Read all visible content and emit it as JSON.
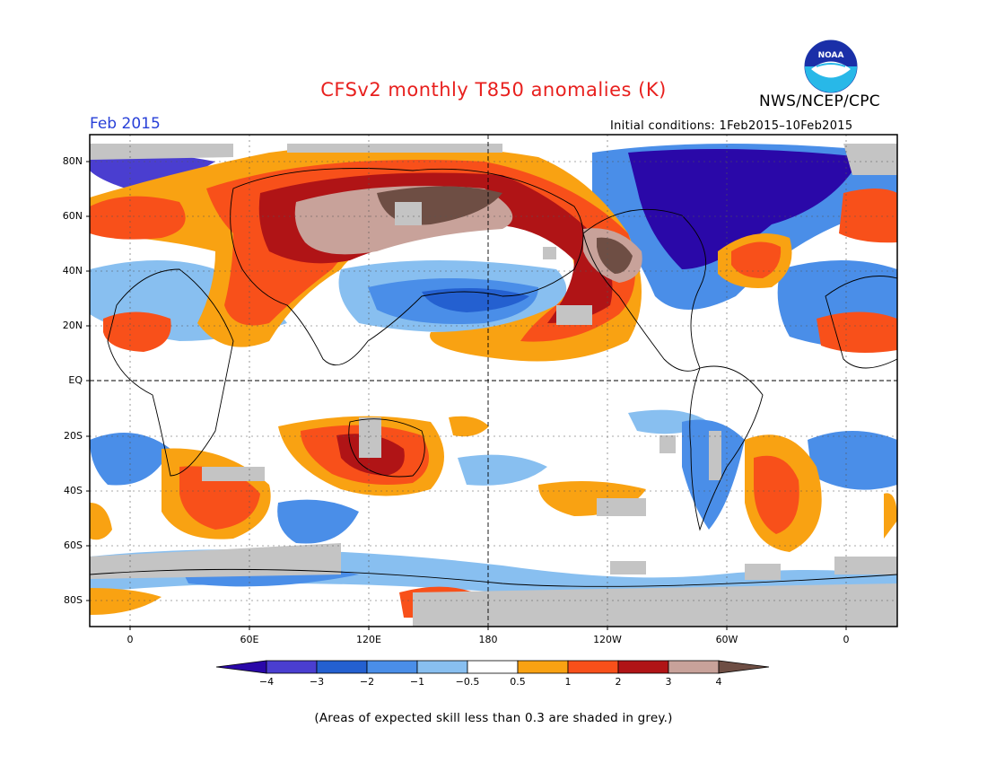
{
  "header": {
    "title": "CFSv2 monthly T850 anomalies (K)",
    "agency": "NWS/NCEP/CPC",
    "month": "Feb 2015",
    "initial_conditions": "Initial conditions: 1Feb2015–10Feb2015",
    "logo_text": "NOAA"
  },
  "map": {
    "y_labels": [
      "80N",
      "60N",
      "40N",
      "20N",
      "EQ",
      "20S",
      "40S",
      "60S",
      "80S"
    ],
    "x_labels": [
      "0",
      "60E",
      "120E",
      "180",
      "120W",
      "60W",
      "0"
    ]
  },
  "colorbar": {
    "labels": [
      "−4",
      "−3",
      "−2",
      "−1",
      "−0.5",
      "0.5",
      "1",
      "2",
      "3",
      "4"
    ],
    "colors": [
      "#2a08a8",
      "#4a3ed0",
      "#2460d0",
      "#4a8ee8",
      "#88bff0",
      "#ffffff",
      "#f9a212",
      "#f8501a",
      "#b01416",
      "#c8a29a",
      "#6e4e44"
    ],
    "skill_grey": "#c4c4c4"
  },
  "footnote": "(Areas of expected skill less than 0.3 are shaded in grey.)"
}
